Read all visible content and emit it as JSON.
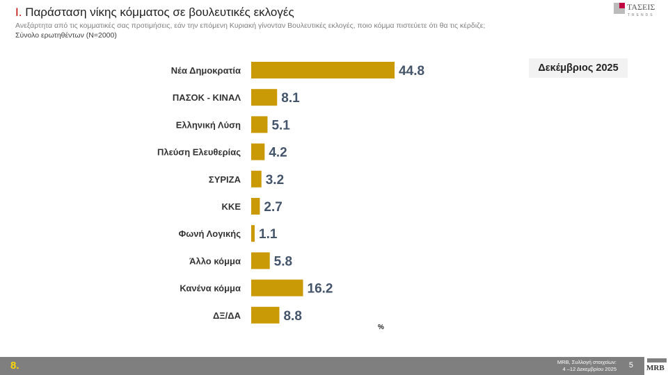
{
  "header": {
    "number": "I.",
    "title": "Παράσταση νίκης κόμματος σε βουλευτικές εκλογές",
    "question": "Ανεξάρτητα από τις κομματικές σας προτιμήσεις, εάν την επόμενη Κυριακή γίνονταν Βουλευτικές εκλογές, ποιο κόμμα πιστεύετε ότι θα τις κέρδιζε;",
    "base": "Σύνολο ερωτηθέντων (Ν=2000)"
  },
  "logo": {
    "name": "ΤΑΣΕΙΣ",
    "tagline": "TRENDS"
  },
  "period": "Δεκέμβριος 2025",
  "chart_data": {
    "type": "bar",
    "orientation": "horizontal",
    "categories": [
      "Νέα Δημοκρατία",
      "ΠΑΣΟΚ - ΚΙΝΑΛ",
      "Ελληνική Λύση",
      "Πλεύση Ελευθερίας",
      "ΣΥΡΙΖΑ",
      "ΚΚΕ",
      "Φωνή Λογικής",
      "Άλλο κόμμα",
      "Κανένα κόμμα",
      "ΔΞ/ΔΑ"
    ],
    "values": [
      44.8,
      8.1,
      5.1,
      4.2,
      3.2,
      2.7,
      1.1,
      5.8,
      16.2,
      8.8
    ],
    "unit": "%",
    "color": "#c99a06",
    "label_color": "#44546a"
  },
  "footer": {
    "page_badge": "8.",
    "source_line1": "MRB, Συλλογή στοιχείων:",
    "source_line2": "4 –12 Δεκεμβρίου 2025",
    "slide_number": "5",
    "brand": "MRB"
  }
}
